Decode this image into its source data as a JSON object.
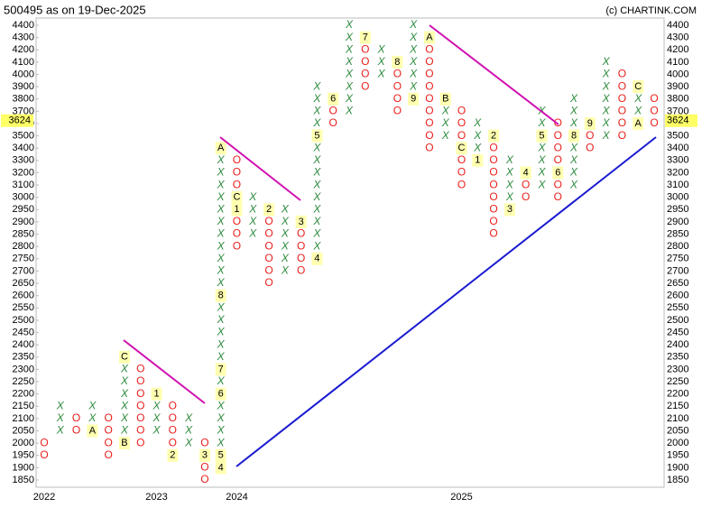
{
  "chart_data": {
    "type": "point-and-figure",
    "title": "500495 as on 19-Dec-2025",
    "credit": "(c) CHARTINK.COM",
    "last_price": 3624,
    "x_color": "#2e8b3e",
    "o_color": "#e8201e",
    "yticks": [
      4400,
      4300,
      4200,
      4100,
      4000,
      3900,
      3800,
      3700,
      3600,
      3500,
      3400,
      3300,
      3200,
      3100,
      3000,
      2950,
      2900,
      2850,
      2800,
      2750,
      2700,
      2650,
      2600,
      2550,
      2500,
      2450,
      2400,
      2350,
      2300,
      2250,
      2200,
      2150,
      2100,
      2050,
      2000,
      1950,
      1900,
      1850
    ],
    "categories": [
      "2022",
      null,
      null,
      null,
      null,
      null,
      null,
      "2023",
      null,
      null,
      null,
      null,
      "2024",
      null,
      null,
      null,
      null,
      null,
      null,
      null,
      null,
      null,
      null,
      null,
      null,
      null,
      "2025",
      null,
      null,
      null,
      null,
      null,
      null,
      null,
      null,
      null,
      null,
      null,
      null
    ],
    "columns": [
      {
        "kind": "O",
        "from": 2000,
        "to": 1950
      },
      {
        "kind": "X",
        "from": 2050,
        "to": 2150
      },
      {
        "kind": "O",
        "from": 2100,
        "to": 2050
      },
      {
        "kind": "X",
        "from": 2050,
        "to": 2150,
        "markers": [
          {
            "price": 2050,
            "label": "A"
          }
        ]
      },
      {
        "kind": "O",
        "from": 2100,
        "to": 1950
      },
      {
        "kind": "X",
        "from": 2000,
        "to": 2350,
        "markers": [
          {
            "price": 2000,
            "label": "B"
          },
          {
            "price": 2350,
            "label": "C"
          }
        ]
      },
      {
        "kind": "O",
        "from": 2300,
        "to": 2000
      },
      {
        "kind": "X",
        "from": 2050,
        "to": 2200,
        "markers": [
          {
            "price": 2200,
            "label": "1"
          }
        ]
      },
      {
        "kind": "O",
        "from": 2150,
        "to": 1950,
        "markers": [
          {
            "price": 1950,
            "label": "2"
          }
        ]
      },
      {
        "kind": "X",
        "from": 2000,
        "to": 2100
      },
      {
        "kind": "O",
        "from": 2000,
        "to": 1850,
        "markers": [
          {
            "price": 1950,
            "label": "3"
          }
        ]
      },
      {
        "kind": "X",
        "from": 1900,
        "to": 3400,
        "markers": [
          {
            "price": 1900,
            "label": "4"
          },
          {
            "price": 1950,
            "label": "5"
          },
          {
            "price": 2200,
            "label": "6"
          },
          {
            "price": 2300,
            "label": "7"
          },
          {
            "price": 2600,
            "label": "8"
          },
          {
            "price": 3400,
            "label": "A"
          }
        ]
      },
      {
        "kind": "O",
        "from": 3300,
        "to": 2800,
        "markers": [
          {
            "price": 3000,
            "label": "C"
          },
          {
            "price": 2950,
            "label": "1"
          }
        ]
      },
      {
        "kind": "X",
        "from": 2850,
        "to": 3000
      },
      {
        "kind": "O",
        "from": 2950,
        "to": 2650,
        "markers": [
          {
            "price": 2950,
            "label": "2"
          }
        ]
      },
      {
        "kind": "X",
        "from": 2700,
        "to": 2950
      },
      {
        "kind": "O",
        "from": 2900,
        "to": 2700,
        "markers": [
          {
            "price": 2900,
            "label": "3"
          }
        ]
      },
      {
        "kind": "X",
        "from": 2750,
        "to": 3900,
        "markers": [
          {
            "price": 2750,
            "label": "4"
          },
          {
            "price": 3500,
            "label": "5"
          }
        ]
      },
      {
        "kind": "O",
        "from": 3800,
        "to": 3600,
        "markers": [
          {
            "price": 3800,
            "label": "6"
          }
        ]
      },
      {
        "kind": "X",
        "from": 3700,
        "to": 4400
      },
      {
        "kind": "O",
        "from": 4300,
        "to": 3900,
        "markers": [
          {
            "price": 4300,
            "label": "7"
          }
        ]
      },
      {
        "kind": "X",
        "from": 4000,
        "to": 4200
      },
      {
        "kind": "O",
        "from": 4100,
        "to": 3700,
        "markers": [
          {
            "price": 4100,
            "label": "8"
          }
        ]
      },
      {
        "kind": "X",
        "from": 3800,
        "to": 4400,
        "markers": [
          {
            "price": 3800,
            "label": "9"
          }
        ]
      },
      {
        "kind": "O",
        "from": 4300,
        "to": 3400,
        "markers": [
          {
            "price": 4300,
            "label": "A"
          }
        ]
      },
      {
        "kind": "X",
        "from": 3500,
        "to": 3800,
        "markers": [
          {
            "price": 3800,
            "label": "B"
          }
        ]
      },
      {
        "kind": "O",
        "from": 3700,
        "to": 3100,
        "markers": [
          {
            "price": 3400,
            "label": "C"
          }
        ]
      },
      {
        "kind": "X",
        "from": 3300,
        "to": 3600,
        "markers": [
          {
            "price": 3300,
            "label": "1"
          }
        ]
      },
      {
        "kind": "O",
        "from": 3500,
        "to": 2850,
        "markers": [
          {
            "price": 3500,
            "label": "2"
          }
        ]
      },
      {
        "kind": "X",
        "from": 2950,
        "to": 3300,
        "markers": [
          {
            "price": 2950,
            "label": "3"
          }
        ]
      },
      {
        "kind": "O",
        "from": 3200,
        "to": 3000,
        "markers": [
          {
            "price": 3200,
            "label": "4"
          }
        ]
      },
      {
        "kind": "X",
        "from": 3100,
        "to": 3700,
        "markers": [
          {
            "price": 3500,
            "label": "5"
          }
        ]
      },
      {
        "kind": "O",
        "from": 3600,
        "to": 3000,
        "markers": [
          {
            "price": 3200,
            "label": "6"
          }
        ]
      },
      {
        "kind": "X",
        "from": 3100,
        "to": 3800,
        "markers": [
          {
            "price": 3500,
            "label": "8"
          }
        ]
      },
      {
        "kind": "O",
        "from": 3600,
        "to": 3400,
        "markers": [
          {
            "price": 3600,
            "label": "9"
          }
        ]
      },
      {
        "kind": "X",
        "from": 3500,
        "to": 4100
      },
      {
        "kind": "O",
        "from": 4000,
        "to": 3500
      },
      {
        "kind": "X",
        "from": 3600,
        "to": 3900,
        "markers": [
          {
            "price": 3600,
            "label": "A"
          },
          {
            "price": 3900,
            "label": "C"
          }
        ]
      },
      {
        "kind": "O",
        "from": 3800,
        "to": 3600
      }
    ]
  }
}
